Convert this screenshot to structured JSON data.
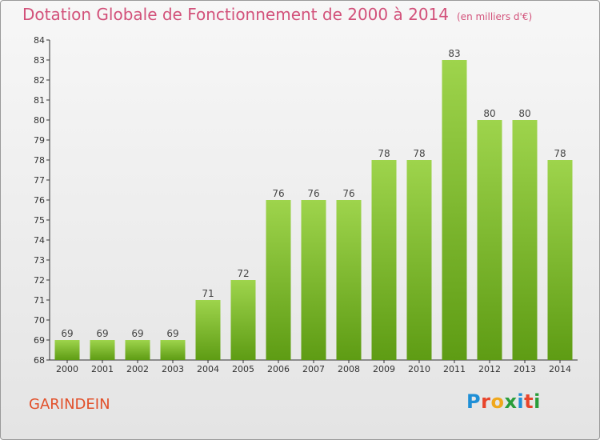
{
  "title": "Dotation Globale de Fonctionnement de 2000 à 2014",
  "subtitle": "(en milliers d'€)",
  "place": "GARINDEIN",
  "logo": {
    "letters": [
      "P",
      "r",
      "o",
      "x",
      "i",
      "t",
      "i"
    ],
    "colors": [
      "#1f8fd6",
      "#e8452c",
      "#f0a81c",
      "#2a9d3a",
      "#1f8fd6",
      "#e8452c",
      "#2a9d3a"
    ]
  },
  "colors": {
    "bar_top": "#9ed44c",
    "bar_bottom": "#5e9c14",
    "axis": "#333333",
    "grid": "#dcdcdc"
  },
  "chart_data": {
    "type": "bar",
    "categories": [
      "2000",
      "2001",
      "2002",
      "2003",
      "2004",
      "2005",
      "2006",
      "2007",
      "2008",
      "2009",
      "2010",
      "2011",
      "2012",
      "2013",
      "2014"
    ],
    "values": [
      69,
      69,
      69,
      69,
      71,
      72,
      76,
      76,
      76,
      78,
      78,
      83,
      80,
      80,
      78
    ],
    "title": "Dotation Globale de Fonctionnement de 2000 à 2014",
    "subtitle": "(en milliers d'€)",
    "xlabel": "",
    "ylabel": "",
    "ylim": [
      68,
      84
    ],
    "yticks": [
      68,
      69,
      70,
      71,
      72,
      73,
      74,
      75,
      76,
      77,
      78,
      79,
      80,
      81,
      82,
      83,
      84
    ],
    "grid": false,
    "data_labels": true
  }
}
